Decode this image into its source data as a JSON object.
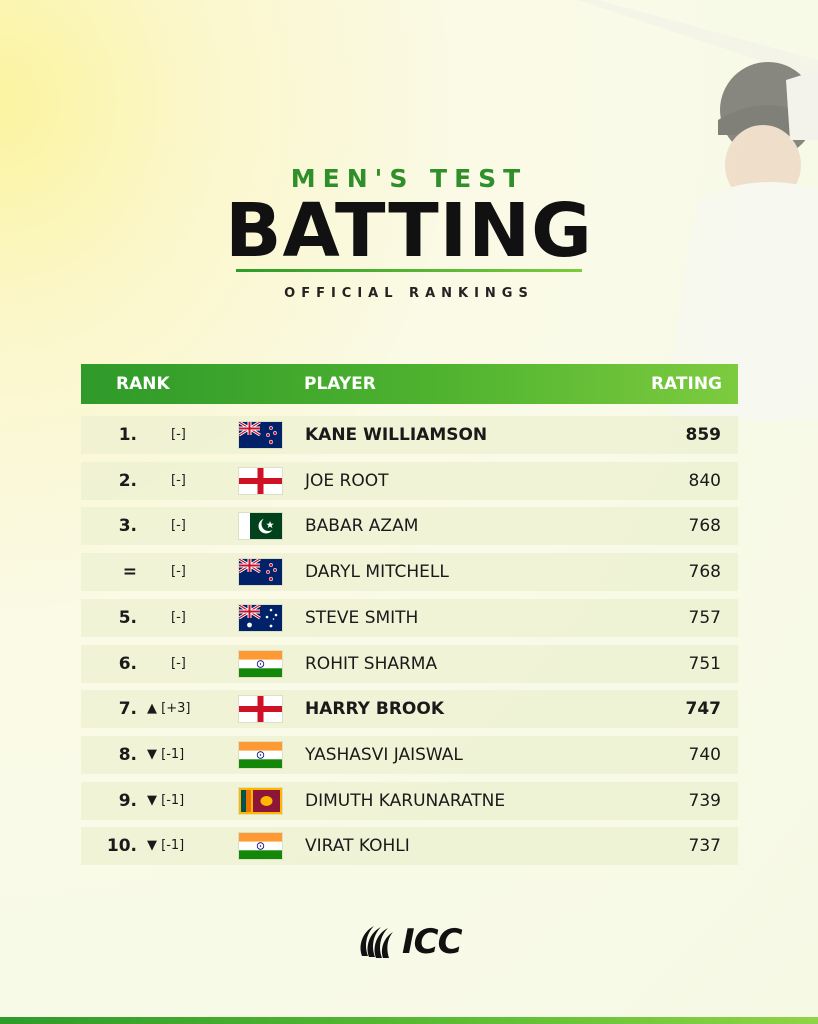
{
  "header": {
    "subtitle": "MEN'S TEST",
    "title": "BATTING",
    "tagline": "OFFICIAL RANKINGS"
  },
  "table": {
    "columns": {
      "rank": "RANK",
      "player": "PLAYER",
      "rating": "RATING"
    },
    "rows": [
      {
        "rank": "1.",
        "movement": "[-]",
        "arrow": "",
        "country": "nz-flag",
        "player": "KANE WILLIAMSON",
        "rating": "859",
        "highlight": true
      },
      {
        "rank": "2.",
        "movement": "[-]",
        "arrow": "",
        "country": "eng-flag",
        "player": "JOE ROOT",
        "rating": "840",
        "highlight": false
      },
      {
        "rank": "3.",
        "movement": "[-]",
        "arrow": "",
        "country": "pak-flag",
        "player": "BABAR AZAM",
        "rating": "768",
        "highlight": false
      },
      {
        "rank": "=",
        "movement": "[-]",
        "arrow": "",
        "country": "nz-flag",
        "player": "DARYL MITCHELL",
        "rating": "768",
        "highlight": false
      },
      {
        "rank": "5.",
        "movement": "[-]",
        "arrow": "",
        "country": "aus-flag",
        "player": "STEVE SMITH",
        "rating": "757",
        "highlight": false
      },
      {
        "rank": "6.",
        "movement": "[-]",
        "arrow": "",
        "country": "ind-flag",
        "player": "ROHIT SHARMA",
        "rating": "751",
        "highlight": false
      },
      {
        "rank": "7.",
        "movement": "[+3]",
        "arrow": "▲",
        "country": "eng-flag",
        "player": "HARRY BROOK",
        "rating": "747",
        "highlight": true
      },
      {
        "rank": "8.",
        "movement": "[-1]",
        "arrow": "▼",
        "country": "ind-flag",
        "player": "YASHASVI JAISWAL",
        "rating": "740",
        "highlight": false
      },
      {
        "rank": "9.",
        "movement": "[-1]",
        "arrow": "▼",
        "country": "sl-flag",
        "player": "DIMUTH KARUNARATNE",
        "rating": "739",
        "highlight": false
      },
      {
        "rank": "10.",
        "movement": "[-1]",
        "arrow": "▼",
        "country": "ind-flag",
        "player": "VIRAT KOHLI",
        "rating": "737",
        "highlight": false
      }
    ]
  },
  "footer": {
    "logo_text": "ICC"
  },
  "colors": {
    "accent": "#2f9a2a",
    "accent_light": "#7dcb3f"
  }
}
